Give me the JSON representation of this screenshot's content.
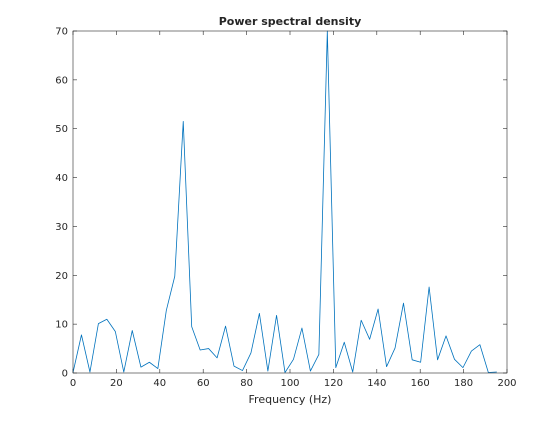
{
  "chart_data": {
    "type": "line",
    "title": "Power spectral density",
    "xlabel": "Frequency (Hz)",
    "ylabel": "",
    "xlim": [
      0,
      200
    ],
    "ylim": [
      0,
      70
    ],
    "xticks": [
      0,
      20,
      40,
      60,
      80,
      100,
      120,
      140,
      160,
      180,
      200
    ],
    "yticks": [
      0,
      10,
      20,
      30,
      40,
      50,
      60,
      70
    ],
    "grid": false,
    "series": [
      {
        "color": "#0072BD",
        "x": [
          0,
          3.9,
          7.8,
          11.7,
          15.6,
          19.5,
          23.4,
          27.3,
          31.3,
          35.2,
          39.1,
          43.0,
          46.9,
          50.8,
          54.7,
          58.6,
          62.5,
          66.4,
          70.3,
          74.2,
          78.1,
          82.0,
          85.9,
          89.8,
          93.8,
          97.7,
          101.6,
          105.5,
          109.4,
          113.3,
          117.2,
          121.1,
          125.0,
          128.9,
          132.8,
          136.7,
          140.6,
          144.5,
          148.4,
          152.3,
          156.3,
          160.2,
          164.1,
          168.0,
          171.9,
          175.8,
          179.7,
          183.6,
          187.5,
          191.4,
          195.3
        ],
        "values": [
          0.1,
          7.8,
          0.2,
          10.1,
          11.0,
          8.5,
          0.2,
          8.7,
          1.2,
          2.2,
          0.9,
          12.8,
          19.8,
          51.5,
          9.5,
          4.7,
          5.0,
          3.1,
          9.6,
          1.4,
          0.5,
          4.1,
          12.2,
          0.4,
          11.8,
          0.1,
          2.8,
          9.2,
          0.4,
          3.8,
          70.0,
          1.1,
          6.3,
          0.2,
          10.8,
          6.9,
          13.1,
          1.3,
          5.1,
          14.3,
          2.7,
          2.2,
          17.6,
          2.7,
          7.6,
          2.8,
          1.1,
          4.5,
          5.8,
          0.1,
          0.2
        ]
      }
    ]
  }
}
